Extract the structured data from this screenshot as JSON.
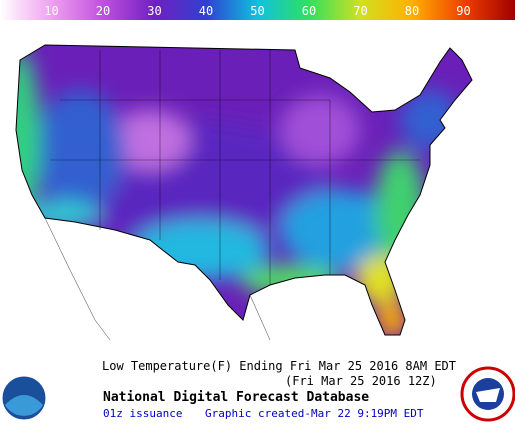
{
  "legend": {
    "range": [
      0,
      100
    ],
    "ticks": [
      10,
      20,
      30,
      40,
      50,
      60,
      70,
      80,
      90
    ],
    "colors": [
      "#ffffff",
      "#f0a0f0",
      "#c050e0",
      "#7020c0",
      "#3040d0",
      "#10c0e0",
      "#30e060",
      "#d0e020",
      "#ffb000",
      "#f04000",
      "#a00000"
    ]
  },
  "caption": {
    "title": "Low Temperature(F) Ending Fri Mar 25 2016  8AM EDT",
    "subtitle": "(Fri Mar 25 2016 12Z)",
    "source": "National Digital Forecast Database",
    "issuance": "01z issuance",
    "created": "Graphic created-Mar 22  9:19PM EDT"
  }
}
